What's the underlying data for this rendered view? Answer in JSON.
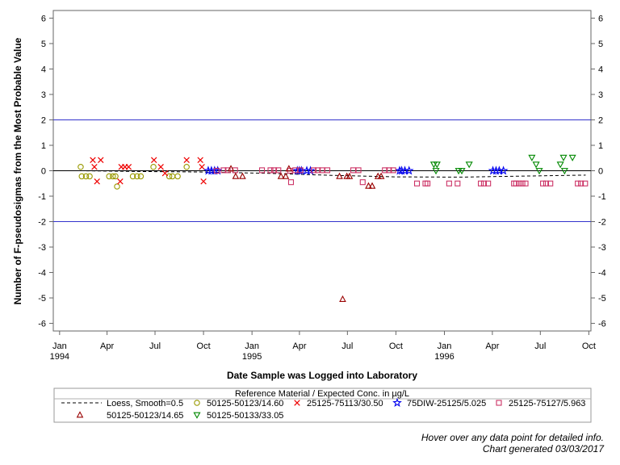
{
  "chart_data": {
    "type": "scatter",
    "ylabel": "Number of F-pseudosigmas from the Most Probable Value",
    "xlabel": "Date Sample was Logged into Laboratory",
    "ylim": [
      -6.3,
      6.3
    ],
    "xlim": [
      "1993-12-20",
      "1996-10-05"
    ],
    "yticks": [
      -6,
      -5,
      -4,
      -3,
      -2,
      -1,
      0,
      1,
      2,
      3,
      4,
      5,
      6
    ],
    "xticks": [
      {
        "date": "1994-01-01",
        "label": "Jan",
        "year": "1994"
      },
      {
        "date": "1994-04-01",
        "label": "Apr",
        "year": ""
      },
      {
        "date": "1994-07-01",
        "label": "Jul",
        "year": ""
      },
      {
        "date": "1994-10-01",
        "label": "Oct",
        "year": ""
      },
      {
        "date": "1995-01-01",
        "label": "Jan",
        "year": "1995"
      },
      {
        "date": "1995-04-01",
        "label": "Apr",
        "year": ""
      },
      {
        "date": "1995-07-01",
        "label": "Jul",
        "year": ""
      },
      {
        "date": "1995-10-01",
        "label": "Oct",
        "year": ""
      },
      {
        "date": "1996-01-01",
        "label": "Jan",
        "year": "1996"
      },
      {
        "date": "1996-04-01",
        "label": "Apr",
        "year": ""
      },
      {
        "date": "1996-07-01",
        "label": "Jul",
        "year": ""
      },
      {
        "date": "1996-10-01",
        "label": "Oct",
        "year": ""
      }
    ],
    "reference_lines": [
      {
        "y": 2,
        "color": "#3333cc"
      },
      {
        "y": 0,
        "color": "#000000"
      },
      {
        "y": -2,
        "color": "#3333cc"
      }
    ],
    "legend": {
      "title": "Reference Material / Expected Conc. in µg/L",
      "placement": "bottom"
    },
    "loess": {
      "name": "Loess, Smooth=0.5",
      "points": [
        [
          "1994-02-10",
          0.0
        ],
        [
          "1994-06-01",
          -0.03
        ],
        [
          "1994-10-01",
          -0.05
        ],
        [
          "1995-02-01",
          -0.1
        ],
        [
          "1995-06-01",
          -0.18
        ],
        [
          "1995-10-01",
          -0.24
        ],
        [
          "1996-02-01",
          -0.25
        ],
        [
          "1996-06-01",
          -0.21
        ],
        [
          "1996-09-25",
          -0.17
        ]
      ]
    },
    "series": [
      {
        "name": "50125-50123/14.60",
        "marker": "circle",
        "color": "#999900",
        "points": [
          [
            "1994-02-10",
            0.15
          ],
          [
            "1994-02-12",
            -0.22
          ],
          [
            "1994-02-20",
            -0.22
          ],
          [
            "1994-02-27",
            -0.22
          ],
          [
            "1994-04-05",
            -0.22
          ],
          [
            "1994-04-12",
            -0.22
          ],
          [
            "1994-04-17",
            -0.22
          ],
          [
            "1994-04-20",
            -0.62
          ],
          [
            "1994-05-20",
            -0.22
          ],
          [
            "1994-05-28",
            -0.22
          ],
          [
            "1994-06-04",
            -0.22
          ],
          [
            "1994-06-28",
            0.15
          ],
          [
            "1994-07-28",
            -0.22
          ],
          [
            "1994-08-03",
            -0.22
          ],
          [
            "1994-08-13",
            -0.22
          ],
          [
            "1994-08-30",
            0.15
          ]
        ]
      },
      {
        "name": "25125-75113/30.50",
        "marker": "x",
        "color": "#ee0000",
        "points": [
          [
            "1994-03-05",
            0.42
          ],
          [
            "1994-03-08",
            0.15
          ],
          [
            "1994-03-13",
            -0.42
          ],
          [
            "1994-03-20",
            0.42
          ],
          [
            "1994-04-26",
            -0.42
          ],
          [
            "1994-04-28",
            0.15
          ],
          [
            "1994-05-05",
            0.15
          ],
          [
            "1994-05-12",
            0.15
          ],
          [
            "1994-06-29",
            0.42
          ],
          [
            "1994-07-12",
            0.15
          ],
          [
            "1994-07-20",
            -0.1
          ],
          [
            "1994-08-30",
            0.42
          ],
          [
            "1994-09-25",
            0.42
          ],
          [
            "1994-09-28",
            0.15
          ],
          [
            "1994-10-01",
            -0.42
          ]
        ]
      },
      {
        "name": "75DIW-25125/5.025",
        "marker": "star",
        "color": "#0000ee",
        "points": [
          [
            "1994-10-10",
            0.0
          ],
          [
            "1994-10-16",
            0.0
          ],
          [
            "1994-10-22",
            0.0
          ],
          [
            "1994-10-28",
            0.0
          ],
          [
            "1995-03-28",
            0.0
          ],
          [
            "1995-04-01",
            0.0
          ],
          [
            "1995-04-05",
            0.0
          ],
          [
            "1995-04-15",
            0.0
          ],
          [
            "1995-04-22",
            0.0
          ],
          [
            "1995-10-08",
            0.0
          ],
          [
            "1995-10-12",
            0.0
          ],
          [
            "1995-10-18",
            0.0
          ],
          [
            "1995-10-26",
            0.0
          ],
          [
            "1996-04-02",
            0.0
          ],
          [
            "1996-04-08",
            0.0
          ],
          [
            "1996-04-14",
            0.0
          ],
          [
            "1996-04-22",
            0.0
          ]
        ]
      },
      {
        "name": "25125-75127/5.963",
        "marker": "square",
        "color": "#cc3366",
        "points": [
          [
            "1994-10-26",
            0.0
          ],
          [
            "1994-11-08",
            0.02
          ],
          [
            "1994-11-16",
            0.02
          ],
          [
            "1994-11-30",
            0.02
          ],
          [
            "1995-01-20",
            0.02
          ],
          [
            "1995-02-05",
            0.02
          ],
          [
            "1995-02-12",
            0.02
          ],
          [
            "1995-02-20",
            0.02
          ],
          [
            "1995-03-14",
            0.0
          ],
          [
            "1995-03-16",
            -0.45
          ],
          [
            "1995-03-24",
            0.02
          ],
          [
            "1995-04-03",
            0.02
          ],
          [
            "1995-04-28",
            0.02
          ],
          [
            "1995-05-06",
            0.02
          ],
          [
            "1995-05-14",
            0.02
          ],
          [
            "1995-05-24",
            0.02
          ],
          [
            "1995-07-12",
            0.02
          ],
          [
            "1995-07-22",
            0.02
          ],
          [
            "1995-07-30",
            -0.45
          ],
          [
            "1995-09-10",
            0.02
          ],
          [
            "1995-09-18",
            0.02
          ],
          [
            "1995-09-26",
            0.02
          ],
          [
            "1995-11-10",
            -0.5
          ],
          [
            "1995-11-26",
            -0.5
          ],
          [
            "1995-11-30",
            -0.5
          ],
          [
            "1996-01-10",
            -0.5
          ],
          [
            "1996-01-26",
            -0.5
          ],
          [
            "1996-03-10",
            -0.5
          ],
          [
            "1996-03-16",
            -0.5
          ],
          [
            "1996-03-24",
            -0.5
          ],
          [
            "1996-05-12",
            -0.5
          ],
          [
            "1996-05-16",
            -0.5
          ],
          [
            "1996-05-22",
            -0.5
          ],
          [
            "1996-05-28",
            -0.5
          ],
          [
            "1996-06-03",
            -0.5
          ],
          [
            "1996-07-06",
            -0.5
          ],
          [
            "1996-07-12",
            -0.5
          ],
          [
            "1996-07-20",
            -0.5
          ],
          [
            "1996-09-10",
            -0.5
          ],
          [
            "1996-09-16",
            -0.5
          ],
          [
            "1996-09-24",
            -0.5
          ]
        ]
      },
      {
        "name": "50125-50123/14.65",
        "marker": "triangle",
        "color": "#990000",
        "points": [
          [
            "1994-11-22",
            0.08
          ],
          [
            "1994-12-01",
            -0.22
          ],
          [
            "1994-12-14",
            -0.22
          ],
          [
            "1995-02-25",
            -0.22
          ],
          [
            "1995-03-06",
            -0.22
          ],
          [
            "1995-03-12",
            0.08
          ],
          [
            "1995-06-16",
            -0.22
          ],
          [
            "1995-06-22",
            -5.05
          ],
          [
            "1995-06-30",
            -0.22
          ],
          [
            "1995-07-05",
            -0.22
          ],
          [
            "1995-08-10",
            -0.6
          ],
          [
            "1995-08-17",
            -0.6
          ],
          [
            "1995-08-28",
            -0.22
          ],
          [
            "1995-09-03",
            -0.22
          ]
        ]
      },
      {
        "name": "50125-50133/33.05",
        "marker": "triangle-down",
        "color": "#008800",
        "points": [
          [
            "1995-12-12",
            0.25
          ],
          [
            "1995-12-18",
            0.25
          ],
          [
            "1995-12-16",
            0.0
          ],
          [
            "1996-01-28",
            0.0
          ],
          [
            "1996-02-03",
            0.0
          ],
          [
            "1996-02-17",
            0.25
          ],
          [
            "1996-06-15",
            0.52
          ],
          [
            "1996-06-23",
            0.25
          ],
          [
            "1996-06-29",
            0.0
          ],
          [
            "1996-08-08",
            0.25
          ],
          [
            "1996-08-14",
            0.52
          ],
          [
            "1996-08-16",
            0.0
          ],
          [
            "1996-08-31",
            0.52
          ]
        ]
      }
    ]
  },
  "footnotes": {
    "hover_hint": "Hover over any data point for detailed info.",
    "generated": "Chart generated 03/03/2017"
  }
}
